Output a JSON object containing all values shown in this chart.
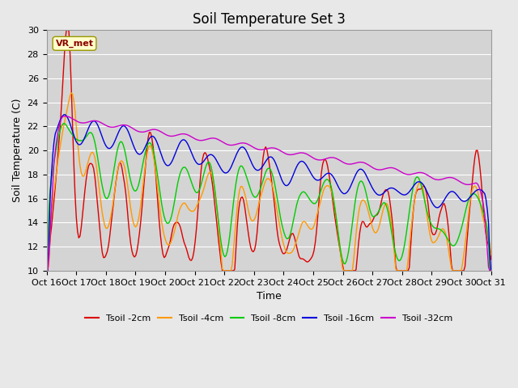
{
  "title": "Soil Temperature Set 3",
  "xlabel": "Time",
  "ylabel": "Soil Temperature (C)",
  "ylim": [
    10,
    30
  ],
  "yticks": [
    10,
    12,
    14,
    16,
    18,
    20,
    22,
    24,
    26,
    28,
    30
  ],
  "xtick_labels": [
    "Oct 16",
    "Oct 17",
    "Oct 18",
    "Oct 19",
    "Oct 20",
    "Oct 21",
    "Oct 22",
    "Oct 23",
    "Oct 24",
    "Oct 25",
    "Oct 26",
    "Oct 27",
    "Oct 28",
    "Oct 29",
    "Oct 30",
    "Oct 31"
  ],
  "colors": {
    "Tsoil -2cm": "#dd0000",
    "Tsoil -4cm": "#ff9900",
    "Tsoil -8cm": "#00cc00",
    "Tsoil -16cm": "#0000dd",
    "Tsoil -32cm": "#cc00cc"
  },
  "legend_label": "VR_met",
  "fig_facecolor": "#e8e8e8",
  "plot_bg_color": "#d4d4d4",
  "grid_color": "#ffffff",
  "title_fontsize": 12,
  "axis_fontsize": 9,
  "tick_fontsize": 8,
  "legend_fontsize": 8
}
